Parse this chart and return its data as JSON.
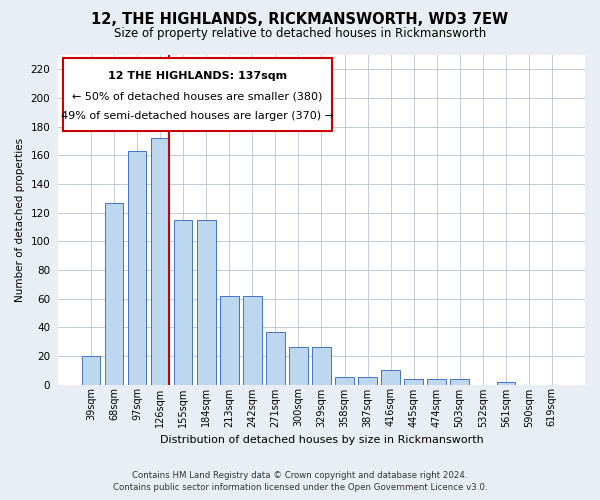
{
  "title": "12, THE HIGHLANDS, RICKMANSWORTH, WD3 7EW",
  "subtitle": "Size of property relative to detached houses in Rickmansworth",
  "xlabel": "Distribution of detached houses by size in Rickmansworth",
  "ylabel": "Number of detached properties",
  "categories": [
    "39sqm",
    "68sqm",
    "97sqm",
    "126sqm",
    "155sqm",
    "184sqm",
    "213sqm",
    "242sqm",
    "271sqm",
    "300sqm",
    "329sqm",
    "358sqm",
    "387sqm",
    "416sqm",
    "445sqm",
    "474sqm",
    "503sqm",
    "532sqm",
    "561sqm",
    "590sqm",
    "619sqm"
  ],
  "values": [
    20,
    127,
    163,
    172,
    115,
    115,
    62,
    62,
    37,
    26,
    26,
    5,
    5,
    10,
    4,
    4,
    4,
    0,
    2,
    0,
    0
  ],
  "bar_color": "#bdd7ee",
  "bar_edge_color": "#4472c4",
  "vline_x_index": 3,
  "vline_color": "#cc0000",
  "annotation_text_line1": "12 THE HIGHLANDS: 137sqm",
  "annotation_text_line2": "← 50% of detached houses are smaller (380)",
  "annotation_text_line3": "49% of semi-detached houses are larger (370) →",
  "annotation_box_edge_color": "#cc0000",
  "ylim_max": 230,
  "yticks": [
    0,
    20,
    40,
    60,
    80,
    100,
    120,
    140,
    160,
    180,
    200,
    220
  ],
  "footer_line1": "Contains HM Land Registry data © Crown copyright and database right 2024.",
  "footer_line2": "Contains public sector information licensed under the Open Government Licence v3.0.",
  "bg_color": "#e8eef4",
  "plot_bg_color": "#ffffff",
  "grid_color": "#c0cdd8"
}
